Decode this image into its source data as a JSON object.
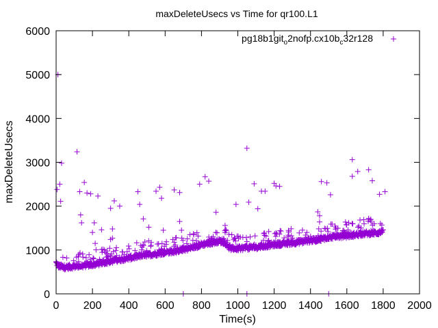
{
  "chart_data": {
    "type": "scatter",
    "title": "maxDeleteUsecs vs Time for qr100.L1",
    "xlabel": "Time(s)",
    "ylabel": "maxDeleteUsecs",
    "xlim": [
      0,
      2000
    ],
    "ylim": [
      0,
      6000
    ],
    "xticks": [
      "0",
      "200",
      "400",
      "600",
      "800",
      "1000",
      "1200",
      "1400",
      "1600",
      "1800",
      "2000"
    ],
    "yticks": [
      "0",
      "1000",
      "2000",
      "3000",
      "4000",
      "5000",
      "6000"
    ],
    "grid": false,
    "legend_position": "top-right",
    "marker": "+",
    "series": [
      {
        "name": "pg18b1git_o2nofp.cx10b_c32r128",
        "color": "#9400d3",
        "baseline": [
          [
            0,
            700
          ],
          [
            10,
            620
          ],
          [
            50,
            590
          ],
          [
            100,
            610
          ],
          [
            150,
            630
          ],
          [
            200,
            650
          ],
          [
            250,
            690
          ],
          [
            300,
            730
          ],
          [
            350,
            770
          ],
          [
            400,
            800
          ],
          [
            450,
            840
          ],
          [
            500,
            870
          ],
          [
            550,
            900
          ],
          [
            600,
            930
          ],
          [
            650,
            960
          ],
          [
            700,
            1000
          ],
          [
            750,
            1040
          ],
          [
            800,
            1110
          ],
          [
            850,
            1150
          ],
          [
            900,
            1190
          ],
          [
            930,
            1150
          ],
          [
            960,
            1010
          ],
          [
            1000,
            1020
          ],
          [
            1100,
            1050
          ],
          [
            1150,
            1080
          ],
          [
            1200,
            1110
          ],
          [
            1300,
            1150
          ],
          [
            1400,
            1200
          ],
          [
            1450,
            1230
          ],
          [
            1500,
            1280
          ],
          [
            1600,
            1310
          ],
          [
            1700,
            1360
          ],
          [
            1800,
            1390
          ]
        ],
        "outliers": [
          [
            10,
            5000
          ],
          [
            30,
            2980
          ],
          [
            20,
            2500
          ],
          [
            25,
            2110
          ],
          [
            5,
            2380
          ],
          [
            115,
            3240
          ],
          [
            155,
            2540
          ],
          [
            170,
            2300
          ],
          [
            130,
            2330
          ],
          [
            190,
            2280
          ],
          [
            135,
            1800
          ],
          [
            140,
            1620
          ],
          [
            210,
            1620
          ],
          [
            230,
            2230
          ],
          [
            250,
            1460
          ],
          [
            200,
            1400
          ],
          [
            300,
            1950
          ],
          [
            310,
            1480
          ],
          [
            320,
            2120
          ],
          [
            350,
            2000
          ],
          [
            215,
            1150
          ],
          [
            250,
            1010
          ],
          [
            300,
            1240
          ],
          [
            310,
            1270
          ],
          [
            450,
            2330
          ],
          [
            460,
            2040
          ],
          [
            480,
            1710
          ],
          [
            510,
            1520
          ],
          [
            550,
            2340
          ],
          [
            570,
            2430
          ],
          [
            580,
            2180
          ],
          [
            590,
            1450
          ],
          [
            650,
            2370
          ],
          [
            680,
            2310
          ],
          [
            680,
            1650
          ],
          [
            690,
            1450
          ],
          [
            790,
            2500
          ],
          [
            820,
            2670
          ],
          [
            840,
            2570
          ],
          [
            880,
            1860
          ],
          [
            930,
            1560
          ],
          [
            990,
            2040
          ],
          [
            1050,
            3320
          ],
          [
            1060,
            2090
          ],
          [
            1090,
            2510
          ],
          [
            1110,
            1940
          ],
          [
            1130,
            2340
          ],
          [
            1150,
            2340
          ],
          [
            1170,
            1420
          ],
          [
            1200,
            2520
          ],
          [
            1210,
            2460
          ],
          [
            1230,
            2450
          ],
          [
            1440,
            1870
          ],
          [
            1450,
            1780
          ],
          [
            1450,
            1640
          ],
          [
            1460,
            2560
          ],
          [
            1490,
            2530
          ],
          [
            1510,
            2260
          ],
          [
            1630,
            3060
          ],
          [
            1630,
            2680
          ],
          [
            1660,
            2790
          ],
          [
            1720,
            2830
          ],
          [
            1720,
            1720
          ],
          [
            1740,
            2580
          ],
          [
            1780,
            2270
          ],
          [
            1810,
            2330
          ],
          [
            1500,
            0
          ],
          [
            1050,
            0
          ],
          [
            700,
            0
          ]
        ]
      }
    ]
  }
}
